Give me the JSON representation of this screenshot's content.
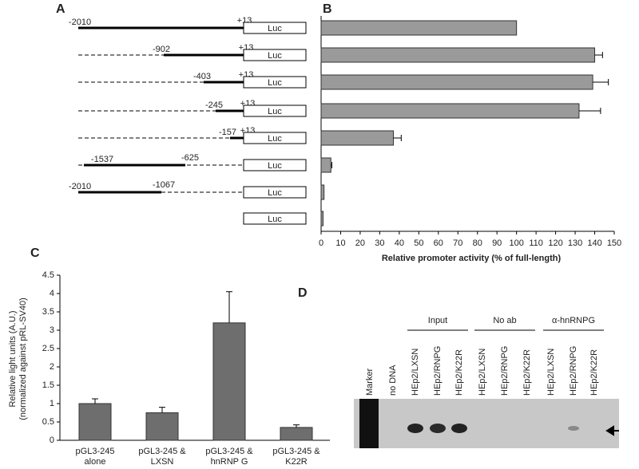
{
  "panels": {
    "a": "A",
    "b": "B",
    "c": "C",
    "d": "D"
  },
  "constructs": [
    {
      "start": "-2010",
      "end": "+13",
      "reporter": "Luc"
    },
    {
      "start": "-902",
      "end": "+13",
      "reporter": "Luc"
    },
    {
      "start": "-403",
      "end": "+13",
      "reporter": "Luc"
    },
    {
      "start": "-245",
      "end": "+13",
      "reporter": "Luc"
    },
    {
      "start": "-157",
      "end": "+13",
      "reporter": "Luc"
    },
    {
      "start": "-1537",
      "end": "-625",
      "reporter": "Luc"
    },
    {
      "start": "-2010",
      "end": "-1067",
      "reporter": "Luc"
    },
    {
      "reporter": "Luc"
    }
  ],
  "chart_data": [
    {
      "type": "hbar",
      "values": [
        100,
        140,
        139,
        132,
        37,
        5,
        1.5,
        1
      ],
      "errors": [
        0,
        4,
        8,
        11,
        4,
        0.5,
        0,
        0
      ],
      "color": "#9a9a9a",
      "xlim": [
        0,
        150
      ],
      "xticks": [
        0,
        10,
        20,
        30,
        40,
        50,
        60,
        70,
        80,
        90,
        100,
        110,
        120,
        130,
        140,
        150
      ],
      "xlabel": "Relative promoter activity (% of full-length)"
    },
    {
      "type": "bar",
      "categories": [
        [
          "pGL3-245",
          "alone"
        ],
        [
          "pGL3-245 &",
          "LXSN"
        ],
        [
          "pGL3-245 &",
          "hnRNP G"
        ],
        [
          "pGL3-245 &",
          "K22R"
        ]
      ],
      "values": [
        1.0,
        0.75,
        3.2,
        0.35
      ],
      "errors": [
        0.13,
        0.15,
        0.85,
        0.07
      ],
      "color": "#6e6e6e",
      "ylim": [
        0,
        4.5
      ],
      "yticks": [
        0,
        0.5,
        1,
        1.5,
        2,
        2.5,
        3,
        3.5,
        4,
        4.5
      ],
      "ylabel": [
        "Relative light units (A.U.)",
        "(normalized against pRL-SV40)"
      ]
    }
  ],
  "gel": {
    "groups": [
      "Input",
      "No ab",
      "α-hnRNPG"
    ],
    "lanes": [
      "Marker",
      "no DNA",
      "HEp2/LXSN",
      "HEp2/RNPG",
      "HEp2/K22R",
      "HEp2/LXSN",
      "HEp2/RNPG",
      "HEp2/K22R",
      "HEp2/LXSN",
      "HEp2/RNPG",
      "HEp2/K22R"
    ]
  }
}
